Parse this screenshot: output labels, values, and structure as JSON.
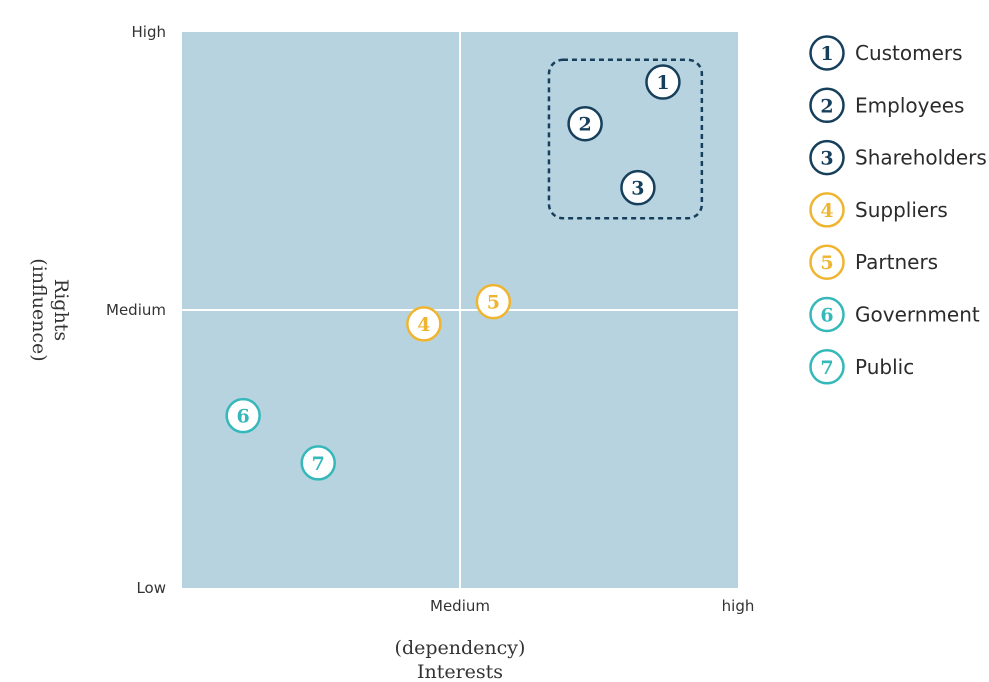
{
  "chart_data": {
    "type": "scatter",
    "title": "",
    "xlabel_lines": [
      "(dependency)",
      "Interests"
    ],
    "ylabel_lines": [
      "(influence)",
      "Rights"
    ],
    "xlim": [
      0,
      2
    ],
    "ylim": [
      0,
      2
    ],
    "x_ticks": [
      {
        "value": 1,
        "label": "Medium"
      },
      {
        "value": 2,
        "label": "high"
      }
    ],
    "y_ticks": [
      {
        "value": 2,
        "label": "High"
      },
      {
        "value": 1,
        "label": "Medium"
      },
      {
        "value": 0,
        "label": "Low"
      }
    ],
    "quadrant_dividers": {
      "x": 1,
      "y": 1
    },
    "grid": false,
    "legend_position": "right",
    "highlight_group": {
      "x_range": [
        1.32,
        1.87
      ],
      "y_range": [
        1.33,
        1.9
      ]
    },
    "colors": {
      "background": "#b8d3e0",
      "divider": "#ffffff",
      "highlight": "#163f5c",
      "group_primary": "#163f5c",
      "group_secondary": "#f0b530",
      "group_tertiary": "#35b8b9"
    },
    "points": [
      {
        "id": "1",
        "label": "Customers",
        "x": 1.73,
        "y": 1.82,
        "group": "primary"
      },
      {
        "id": "2",
        "label": "Employees",
        "x": 1.45,
        "y": 1.67,
        "group": "primary"
      },
      {
        "id": "3",
        "label": "Shareholders",
        "x": 1.64,
        "y": 1.44,
        "group": "primary"
      },
      {
        "id": "4",
        "label": "Suppliers",
        "x": 0.87,
        "y": 0.95,
        "group": "secondary"
      },
      {
        "id": "5",
        "label": "Partners",
        "x": 1.12,
        "y": 1.03,
        "group": "secondary"
      },
      {
        "id": "6",
        "label": "Government",
        "x": 0.22,
        "y": 0.62,
        "group": "tertiary"
      },
      {
        "id": "7",
        "label": "Public",
        "x": 0.49,
        "y": 0.45,
        "group": "tertiary"
      }
    ]
  }
}
